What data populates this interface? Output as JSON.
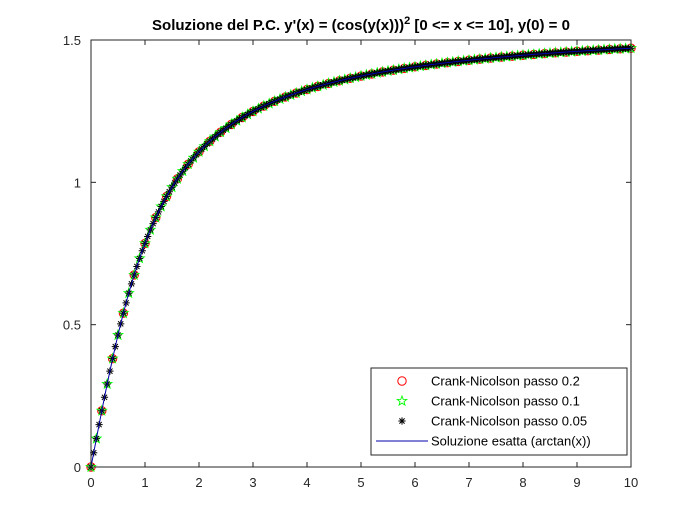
{
  "chart_data": {
    "type": "line",
    "title": "Soluzione del P.C. y'(x) = (cos(y(x)))",
    "title_superscript": "2",
    "title_suffix": " [0 <= x <= 10], y(0) = 0",
    "xlabel": "",
    "ylabel": "",
    "xlim": [
      0,
      10
    ],
    "ylim": [
      0,
      1.5
    ],
    "xticks": [
      "0",
      "1",
      "2",
      "3",
      "4",
      "5",
      "6",
      "7",
      "8",
      "9",
      "10"
    ],
    "yticks": [
      "0",
      "0.5",
      "1",
      "1.5"
    ],
    "grid": false,
    "legend_position": "bottom-right",
    "series": [
      {
        "name": "Crank-Nicolson passo 0.2",
        "marker": "circle",
        "color": "#ff0000",
        "step": 0.2
      },
      {
        "name": "Crank-Nicolson passo 0.1",
        "marker": "pentagram",
        "color": "#00ff00",
        "step": 0.1
      },
      {
        "name": "Crank-Nicolson passo 0.05",
        "marker": "asterisk",
        "color": "#000000",
        "step": 0.05
      },
      {
        "name": "Soluzione esatta (arctan(x))",
        "marker": "line",
        "color": "#0000aa",
        "function": "arctan(x)"
      }
    ]
  }
}
